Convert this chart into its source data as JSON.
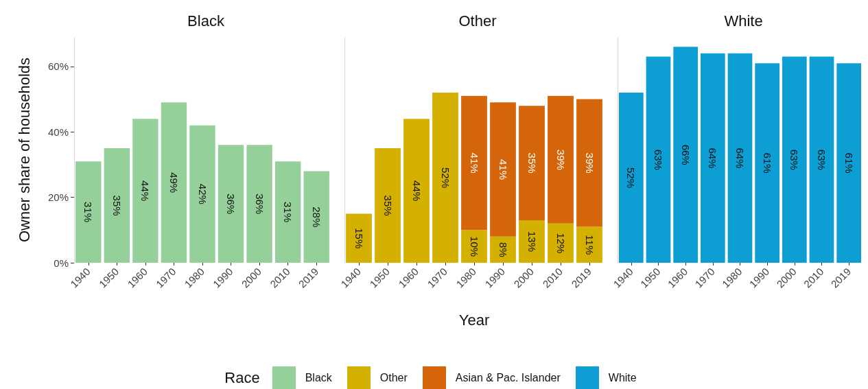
{
  "chart_data": [
    {
      "type": "bar",
      "title": "Black",
      "ylabel": "Owner share of households",
      "categories": [
        "1940",
        "1950",
        "1960",
        "1970",
        "1980",
        "1990",
        "2000",
        "2010",
        "2019"
      ],
      "series": [
        {
          "name": "Black",
          "color": "#95d09b",
          "values": [
            31,
            35,
            44,
            49,
            42,
            36,
            36,
            31,
            28
          ],
          "value_labels": [
            "31%",
            "35%",
            "44%",
            "49%",
            "42%",
            "36%",
            "36%",
            "31%",
            "28%"
          ]
        }
      ],
      "ylim": [
        0,
        69
      ],
      "yticks": [
        {
          "value": 0,
          "label": "0%"
        },
        {
          "value": 20,
          "label": "20%"
        },
        {
          "value": 40,
          "label": "40%"
        },
        {
          "value": 60,
          "label": "60%"
        }
      ],
      "grid": false,
      "legend": "bottom"
    },
    {
      "type": "bar",
      "title": "Other",
      "xlabel": "Year",
      "legend_title": "Race",
      "stacked": true,
      "categories": [
        "1940",
        "1950",
        "1960",
        "1970",
        "1980",
        "1990",
        "2000",
        "2010",
        "2019"
      ],
      "series": [
        {
          "name": "Other",
          "color": "#d4b000",
          "values": [
            15,
            35,
            44,
            52,
            10,
            8,
            13,
            12,
            11
          ],
          "value_labels": [
            "15%",
            "35%",
            "44%",
            "52%",
            "10%",
            "8%",
            "13%",
            "12%",
            "11%"
          ]
        },
        {
          "name": "Asian & Pac. Islander",
          "color": "#d5650a",
          "values": [
            null,
            null,
            null,
            null,
            41,
            41,
            35,
            39,
            39
          ],
          "value_labels": [
            null,
            null,
            null,
            null,
            "41%",
            "41%",
            "35%",
            "39%",
            "39%"
          ]
        }
      ],
      "ylim": [
        0,
        69
      ],
      "tick_labels": "x",
      "grid": false,
      "legend": "bottom"
    },
    {
      "type": "bar",
      "title": "White",
      "categories": [
        "1940",
        "1950",
        "1960",
        "1970",
        "1980",
        "1990",
        "2000",
        "2010",
        "2019"
      ],
      "series": [
        {
          "name": "White",
          "color": "#0d9fd4",
          "values": [
            52,
            63,
            66,
            64,
            64,
            61,
            63,
            63,
            61
          ],
          "value_labels": [
            "52%",
            "63%",
            "66%",
            "64%",
            "64%",
            "61%",
            "63%",
            "63%",
            "61%"
          ]
        }
      ],
      "ylim": [
        0,
        69
      ],
      "tick_labels": "x",
      "grid": false,
      "legend": "bottom"
    }
  ]
}
